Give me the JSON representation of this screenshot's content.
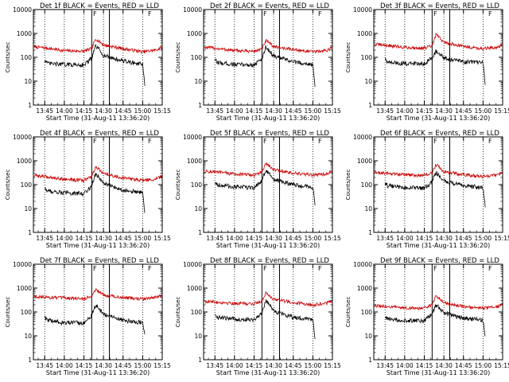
{
  "figure": {
    "colors": {
      "events": "#000000",
      "lld": "#cc0000",
      "axis": "#000000",
      "background": "#ffffff"
    },
    "ylabel": "Counts/sec",
    "xlabel": "Start Time (31-Aug-11 13:36:20)",
    "x_tick_labels": [
      "13:45",
      "14:00",
      "14:15",
      "14:30",
      "14:45",
      "15:00",
      "15:15"
    ],
    "y_tick_labels": [
      "1",
      "10",
      "100",
      "1000",
      "10000"
    ],
    "marker_glyph": "F"
  },
  "chart_data": [
    {
      "type": "line",
      "title": "Det 1f BLACK = Events, RED = LLD",
      "xlim": [
        "13:36:20",
        "15:15"
      ],
      "ylim": [
        1,
        10000
      ],
      "yscale": "log",
      "series": [
        {
          "name": "LLD",
          "color": "red",
          "x": [
            "13:37",
            "13:45",
            "14:00",
            "14:15",
            "14:21",
            "14:24",
            "14:27",
            "14:30",
            "14:45",
            "15:00",
            "15:10",
            "15:15"
          ],
          "values": [
            270,
            250,
            190,
            180,
            230,
            600,
            450,
            330,
            230,
            170,
            200,
            260
          ]
        },
        {
          "name": "Events",
          "color": "black",
          "x": [
            "13:45",
            "13:47",
            "14:00",
            "14:15",
            "14:21",
            "14:24",
            "14:27",
            "14:30",
            "14:45",
            "15:00",
            "15:02"
          ],
          "values": [
            80,
            55,
            50,
            48,
            90,
            300,
            200,
            120,
            70,
            50,
            4
          ]
        }
      ]
    },
    {
      "type": "line",
      "title": "Det 2f BLACK = Events, RED = LLD",
      "xlim": [
        "13:36:20",
        "15:15"
      ],
      "ylim": [
        1,
        10000
      ],
      "yscale": "log",
      "series": [
        {
          "name": "LLD",
          "color": "red",
          "x": [
            "13:37",
            "13:45",
            "14:00",
            "14:15",
            "14:21",
            "14:24",
            "14:27",
            "14:30",
            "14:45",
            "15:00",
            "15:10",
            "15:15"
          ],
          "values": [
            260,
            240,
            190,
            180,
            220,
            500,
            380,
            280,
            210,
            170,
            190,
            250
          ]
        },
        {
          "name": "Events",
          "color": "black",
          "x": [
            "13:45",
            "13:47",
            "14:00",
            "14:15",
            "14:21",
            "14:24",
            "14:27",
            "14:30",
            "14:45",
            "15:00",
            "15:02"
          ],
          "values": [
            75,
            60,
            50,
            48,
            85,
            280,
            180,
            110,
            65,
            50,
            3
          ]
        }
      ]
    },
    {
      "type": "line",
      "title": "Det 3f BLACK = Events, RED = LLD",
      "xlim": [
        "13:36:20",
        "15:15"
      ],
      "ylim": [
        1,
        10000
      ],
      "yscale": "log",
      "series": [
        {
          "name": "LLD",
          "color": "red",
          "x": [
            "13:37",
            "13:45",
            "14:00",
            "14:15",
            "14:21",
            "14:24",
            "14:27",
            "14:30",
            "14:45",
            "15:00",
            "15:10",
            "15:15"
          ],
          "values": [
            350,
            320,
            260,
            240,
            300,
            900,
            650,
            420,
            290,
            230,
            260,
            330
          ]
        },
        {
          "name": "Events",
          "color": "black",
          "x": [
            "13:45",
            "13:47",
            "14:00",
            "14:15",
            "14:21",
            "14:24",
            "14:27",
            "14:30",
            "14:45",
            "15:00",
            "15:02"
          ],
          "values": [
            90,
            60,
            55,
            55,
            100,
            180,
            130,
            90,
            65,
            60,
            5
          ]
        }
      ]
    },
    {
      "type": "line",
      "title": "Det 4f BLACK = Events, RED = LLD",
      "xlim": [
        "13:36:20",
        "15:15"
      ],
      "ylim": [
        1,
        10000
      ],
      "yscale": "log",
      "series": [
        {
          "name": "LLD",
          "color": "red",
          "x": [
            "13:37",
            "13:45",
            "14:00",
            "14:15",
            "14:21",
            "14:24",
            "14:27",
            "14:30",
            "14:45",
            "15:00",
            "15:10",
            "15:15"
          ],
          "values": [
            240,
            220,
            170,
            150,
            220,
            550,
            400,
            280,
            190,
            150,
            170,
            230
          ]
        },
        {
          "name": "Events",
          "color": "black",
          "x": [
            "13:45",
            "13:47",
            "14:00",
            "14:15",
            "14:21",
            "14:24",
            "14:27",
            "14:30",
            "14:45",
            "15:00",
            "15:02"
          ],
          "values": [
            70,
            55,
            45,
            42,
            90,
            280,
            190,
            110,
            60,
            45,
            4
          ]
        }
      ]
    },
    {
      "type": "line",
      "title": "Det 5f BLACK = Events, RED = LLD",
      "xlim": [
        "13:36:20",
        "15:15"
      ],
      "ylim": [
        1,
        10000
      ],
      "yscale": "log",
      "series": [
        {
          "name": "LLD",
          "color": "red",
          "x": [
            "13:37",
            "13:45",
            "14:00",
            "14:15",
            "14:21",
            "14:24",
            "14:27",
            "14:30",
            "14:45",
            "15:00",
            "15:10",
            "15:15"
          ],
          "values": [
            360,
            340,
            280,
            250,
            330,
            800,
            600,
            420,
            300,
            250,
            280,
            340
          ]
        },
        {
          "name": "Events",
          "color": "black",
          "x": [
            "13:45",
            "13:47",
            "14:00",
            "14:15",
            "14:21",
            "14:24",
            "14:27",
            "14:30",
            "14:45",
            "15:00",
            "15:02"
          ],
          "values": [
            130,
            100,
            80,
            75,
            150,
            400,
            260,
            160,
            100,
            75,
            12
          ]
        }
      ]
    },
    {
      "type": "line",
      "title": "Det 6f BLACK = Events, RED = LLD",
      "xlim": [
        "13:36:20",
        "15:15"
      ],
      "ylim": [
        1,
        10000
      ],
      "yscale": "log",
      "series": [
        {
          "name": "LLD",
          "color": "red",
          "x": [
            "13:37",
            "13:45",
            "14:00",
            "14:15",
            "14:21",
            "14:24",
            "14:27",
            "14:30",
            "14:45",
            "15:00",
            "15:10",
            "15:15"
          ],
          "values": [
            320,
            300,
            260,
            240,
            300,
            700,
            500,
            350,
            260,
            220,
            250,
            310
          ]
        },
        {
          "name": "Events",
          "color": "black",
          "x": [
            "13:45",
            "13:47",
            "14:00",
            "14:15",
            "14:21",
            "14:24",
            "14:27",
            "14:30",
            "14:45",
            "15:00",
            "15:02"
          ],
          "values": [
            120,
            90,
            75,
            70,
            130,
            330,
            220,
            140,
            90,
            75,
            8
          ]
        }
      ]
    },
    {
      "type": "line",
      "title": "Det 7f BLACK = Events, RED = LLD",
      "xlim": [
        "13:36:20",
        "15:15"
      ],
      "ylim": [
        1,
        10000
      ],
      "yscale": "log",
      "series": [
        {
          "name": "LLD",
          "color": "red",
          "x": [
            "13:37",
            "13:45",
            "14:00",
            "14:15",
            "14:21",
            "14:24",
            "14:27",
            "14:30",
            "14:45",
            "15:00",
            "15:10",
            "15:15"
          ],
          "values": [
            450,
            420,
            380,
            360,
            450,
            900,
            700,
            520,
            400,
            350,
            400,
            480
          ]
        },
        {
          "name": "Events",
          "color": "black",
          "x": [
            "13:45",
            "13:47",
            "14:00",
            "14:15",
            "14:21",
            "14:24",
            "14:27",
            "14:30",
            "14:45",
            "15:00",
            "15:02"
          ],
          "values": [
            60,
            45,
            35,
            35,
            70,
            200,
            130,
            80,
            45,
            35,
            8
          ]
        }
      ]
    },
    {
      "type": "line",
      "title": "Det 8f BLACK = Events, RED = LLD",
      "xlim": [
        "13:36:20",
        "15:15"
      ],
      "ylim": [
        1,
        10000
      ],
      "yscale": "log",
      "series": [
        {
          "name": "LLD",
          "color": "red",
          "x": [
            "13:37",
            "13:45",
            "14:00",
            "14:15",
            "14:21",
            "14:24",
            "14:27",
            "14:30",
            "14:45",
            "15:00",
            "15:10",
            "15:15"
          ],
          "values": [
            280,
            260,
            230,
            220,
            290,
            650,
            480,
            340,
            250,
            200,
            230,
            290
          ]
        },
        {
          "name": "Events",
          "color": "black",
          "x": [
            "13:45",
            "13:47",
            "14:00",
            "14:15",
            "14:21",
            "14:24",
            "14:27",
            "14:30",
            "14:45",
            "15:00",
            "15:02"
          ],
          "values": [
            75,
            60,
            50,
            48,
            90,
            300,
            200,
            110,
            60,
            48,
            6
          ]
        }
      ]
    },
    {
      "type": "line",
      "title": "Det 9f BLACK = Events, RED = LLD",
      "xlim": [
        "13:36:20",
        "15:15"
      ],
      "ylim": [
        1,
        10000
      ],
      "yscale": "log",
      "series": [
        {
          "name": "LLD",
          "color": "red",
          "x": [
            "13:37",
            "13:45",
            "14:00",
            "14:15",
            "14:21",
            "14:24",
            "14:27",
            "14:30",
            "14:45",
            "15:00",
            "15:10",
            "15:15"
          ],
          "values": [
            180,
            170,
            150,
            140,
            200,
            500,
            350,
            240,
            170,
            140,
            160,
            210
          ]
        },
        {
          "name": "Events",
          "color": "black",
          "x": [
            "13:45",
            "13:47",
            "14:00",
            "14:15",
            "14:21",
            "14:24",
            "14:27",
            "14:30",
            "14:45",
            "15:00",
            "15:02"
          ],
          "values": [
            60,
            50,
            45,
            42,
            80,
            200,
            140,
            90,
            55,
            45,
            7
          ]
        }
      ]
    }
  ]
}
